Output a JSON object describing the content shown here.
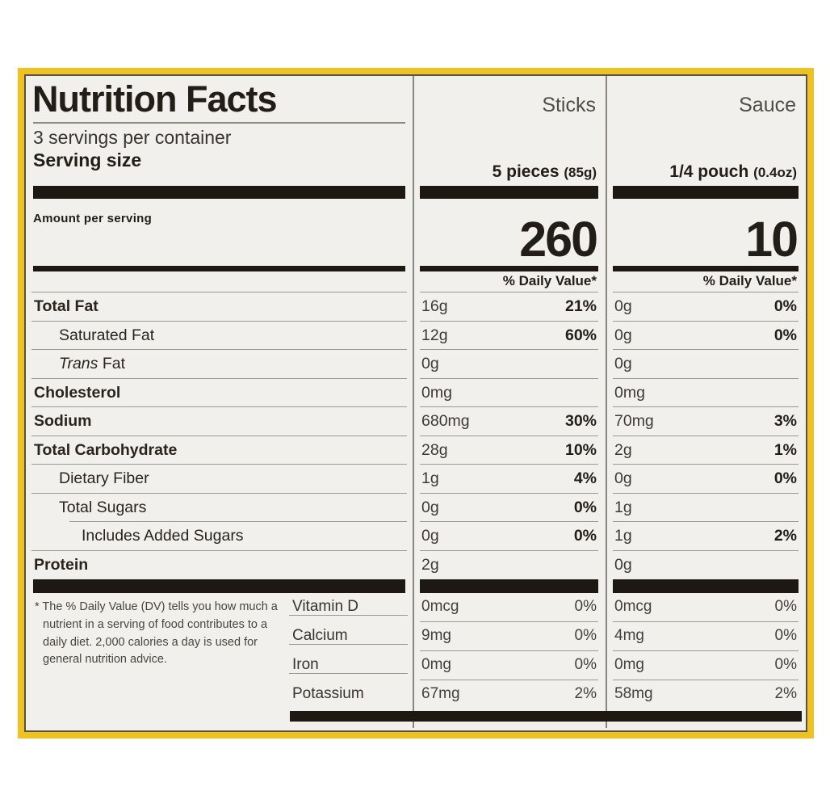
{
  "colors": {
    "frame": "#eec320",
    "background": "#f1f0ed",
    "ink": "#231d17",
    "bar": "#1d1812",
    "line": "#9b978f"
  },
  "label": {
    "title": "Nutrition Facts",
    "servings_per_container": "3 servings per container",
    "serving_size_label": "Serving size",
    "amount_per_serving": "Amount per serving",
    "daily_value_header": "% Daily Value*",
    "columns": [
      {
        "name": "Sticks",
        "serving": "5 pieces",
        "serving_weight": "(85g)",
        "calories": "260"
      },
      {
        "name": "Sauce",
        "serving": "1/4 pouch",
        "serving_weight": "(0.4oz)",
        "calories": "10"
      }
    ],
    "nutrients": [
      {
        "label_italic": "",
        "label": "Total Fat",
        "sticks_amount": "16g",
        "sticks_dv": "21%",
        "sauce_amount": "0g",
        "sauce_dv": "0%"
      },
      {
        "label_italic": "",
        "label": "Saturated Fat",
        "sticks_amount": "12g",
        "sticks_dv": "60%",
        "sauce_amount": "0g",
        "sauce_dv": "0%"
      },
      {
        "label_italic": "Trans",
        "label": " Fat",
        "sticks_amount": "0g",
        "sticks_dv": "",
        "sauce_amount": "0g",
        "sauce_dv": ""
      },
      {
        "label_italic": "",
        "label": "Cholesterol",
        "sticks_amount": "0mg",
        "sticks_dv": "",
        "sauce_amount": "0mg",
        "sauce_dv": ""
      },
      {
        "label_italic": "",
        "label": "Sodium",
        "sticks_amount": "680mg",
        "sticks_dv": "30%",
        "sauce_amount": "70mg",
        "sauce_dv": "3%"
      },
      {
        "label_italic": "",
        "label": "Total Carbohydrate",
        "sticks_amount": "28g",
        "sticks_dv": "10%",
        "sauce_amount": "2g",
        "sauce_dv": "1%"
      },
      {
        "label_italic": "",
        "label": "Dietary Fiber",
        "sticks_amount": "1g",
        "sticks_dv": "4%",
        "sauce_amount": "0g",
        "sauce_dv": "0%"
      },
      {
        "label_italic": "",
        "label": "Total Sugars",
        "sticks_amount": "0g",
        "sticks_dv": "0%",
        "sauce_amount": "1g",
        "sauce_dv": ""
      },
      {
        "label_italic": "",
        "label": "Includes Added Sugars",
        "sticks_amount": "0g",
        "sticks_dv": "0%",
        "sauce_amount": "1g",
        "sauce_dv": "2%"
      },
      {
        "label_italic": "",
        "label": "Protein",
        "sticks_amount": "2g",
        "sticks_dv": "",
        "sauce_amount": "0g",
        "sauce_dv": ""
      }
    ],
    "micronutrients": [
      {
        "label": "Vitamin D",
        "sticks_amount": "0mcg",
        "sticks_dv": "0%",
        "sauce_amount": "0mcg",
        "sauce_dv": "0%"
      },
      {
        "label": "Calcium",
        "sticks_amount": "9mg",
        "sticks_dv": "0%",
        "sauce_amount": "4mg",
        "sauce_dv": "0%"
      },
      {
        "label": "Iron",
        "sticks_amount": "0mg",
        "sticks_dv": "0%",
        "sauce_amount": "0mg",
        "sauce_dv": "0%"
      },
      {
        "label": "Potassium",
        "sticks_amount": "67mg",
        "sticks_dv": "2%",
        "sauce_amount": "58mg",
        "sauce_dv": "2%"
      }
    ],
    "footnote": "* The % Daily Value (DV) tells you how much a nutrient in a serving of food contributes to a daily diet. 2,000 calories a day is used for general nutrition advice."
  }
}
